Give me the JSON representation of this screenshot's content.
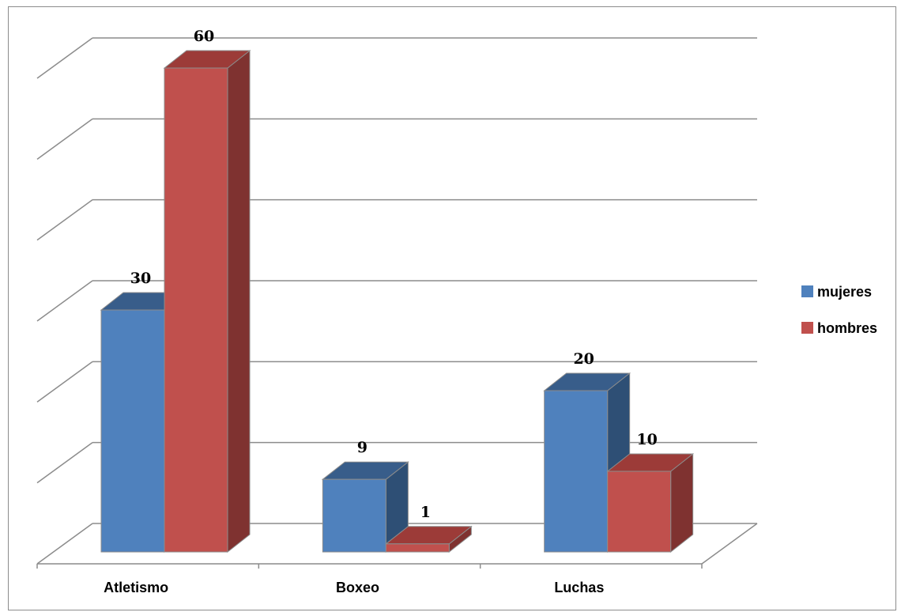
{
  "chart_data": {
    "type": "bar",
    "categories": [
      "Atletismo",
      "Boxeo",
      "Luchas"
    ],
    "series": [
      {
        "name": "mujeres",
        "values": [
          30,
          9,
          20
        ],
        "color": "#4f81bd",
        "top_color": "#385d8a",
        "side_color": "#2e4f75"
      },
      {
        "name": "hombres",
        "values": [
          60,
          1,
          10
        ],
        "color": "#c0504d",
        "top_color": "#9c3b38",
        "side_color": "#7f3230"
      }
    ],
    "ylim": [
      0,
      60
    ],
    "y_major_step": 10,
    "grid": true,
    "legend_position": "right",
    "title": "",
    "xlabel": "",
    "ylabel": ""
  }
}
